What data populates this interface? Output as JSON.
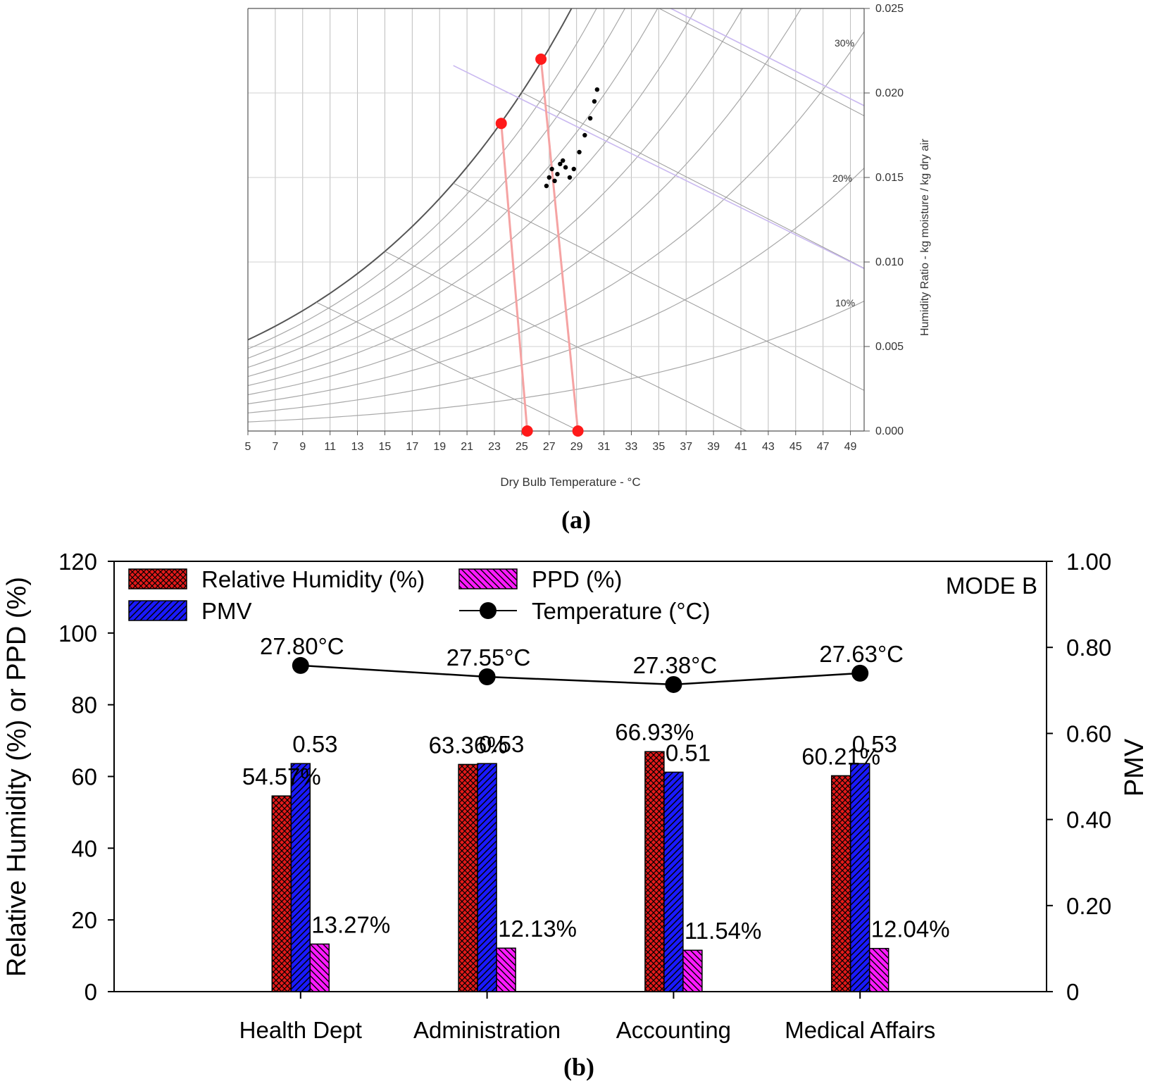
{
  "panel_a": {
    "caption": "(a)",
    "xlabel": "Dry Bulb Temperature - °C",
    "ylabel": "Humidity Ratio - kg moisture / kg dry air",
    "x_ticks": [
      5,
      7,
      9,
      11,
      13,
      15,
      17,
      19,
      21,
      23,
      25,
      27,
      29,
      31,
      33,
      35,
      37,
      39,
      41,
      43,
      45,
      47,
      49
    ],
    "y_ticks": [
      "0.000",
      "0.005",
      "0.010",
      "0.015",
      "0.020",
      "0.025"
    ],
    "rh_labels": [
      "30%",
      "20%",
      "10%"
    ],
    "colors": {
      "grid": "#bdbdbd",
      "enthalpy": "#c9b8f0",
      "marker": "#ff1a1a",
      "connector": "#f5a3a3",
      "points": "#000000"
    }
  },
  "panel_b": {
    "caption": "(b)",
    "mode_label": "MODE B",
    "y_left_label": "Relative Humidity (%) or PPD (%)",
    "y_right_label": "PMV",
    "y_left_ticks": [
      "0",
      "20",
      "40",
      "60",
      "80",
      "100",
      "120"
    ],
    "y_right_ticks": [
      "0",
      "0.20",
      "0.40",
      "0.60",
      "0.80",
      "1.00"
    ],
    "legend": [
      {
        "label": "Relative Humidity (%)",
        "key": "rh"
      },
      {
        "label": "PPD (%)",
        "key": "ppd"
      },
      {
        "label": "PMV",
        "key": "pmv"
      },
      {
        "label": "Temperature (°C)",
        "key": "temp"
      }
    ],
    "colors": {
      "rh": "#e31a1a",
      "pmv": "#1a1aff",
      "ppd": "#ff1aff",
      "line": "#000000"
    }
  },
  "chart_data": [
    {
      "type": "scatter",
      "title": "",
      "xlabel": "Dry Bulb Temperature - °C",
      "ylabel": "Humidity Ratio - kg moisture / kg dry air",
      "xlim": [
        5,
        50
      ],
      "ylim": [
        0,
        0.025
      ],
      "series": [
        {
          "name": "",
          "x": [
            23.5,
            26.4,
            25.4,
            29.1
          ],
          "y": [
            0.0182,
            0.022,
            0.0,
            0.0
          ]
        },
        {
          "name": "",
          "x": [
            26.8,
            27.0,
            27.2,
            27.4,
            27.6,
            27.8,
            28.0,
            28.2,
            28.5,
            28.8,
            29.2,
            29.6,
            30.0,
            30.3,
            30.5
          ],
          "y": [
            0.0145,
            0.015,
            0.0155,
            0.0148,
            0.0152,
            0.0158,
            0.016,
            0.0156,
            0.015,
            0.0155,
            0.0165,
            0.0175,
            0.0185,
            0.0195,
            0.0202
          ]
        }
      ],
      "grid": true
    },
    {
      "type": "bar",
      "title": "",
      "categories": [
        "Health Dept",
        "Administration",
        "Accounting",
        "Medical Affairs"
      ],
      "ylim": [
        0,
        120
      ],
      "y2lim": [
        0,
        1.0
      ],
      "series": [
        {
          "name": "Relative Humidity (%)",
          "axis": "left",
          "values": [
            54.57,
            63.36,
            66.93,
            60.21
          ],
          "labels": [
            "54.57%",
            "63.36%",
            "66.93%",
            "60.21%"
          ]
        },
        {
          "name": "PMV",
          "axis": "right",
          "values": [
            0.53,
            0.53,
            0.51,
            0.53
          ],
          "labels": [
            "0.53",
            "0.53",
            "0.51",
            "0.53"
          ]
        },
        {
          "name": "PPD (%)",
          "axis": "left",
          "values": [
            13.27,
            12.13,
            11.54,
            12.04
          ],
          "labels": [
            "13.27%",
            "12.13%",
            "11.54%",
            "12.04%"
          ]
        },
        {
          "name": "Temperature (°C)",
          "type": "line",
          "axis": "right",
          "values": [
            27.8,
            27.55,
            27.38,
            27.63
          ],
          "labels": [
            "27.80°C",
            "27.55°C",
            "27.38°C",
            "27.63°C"
          ]
        }
      ]
    }
  ]
}
